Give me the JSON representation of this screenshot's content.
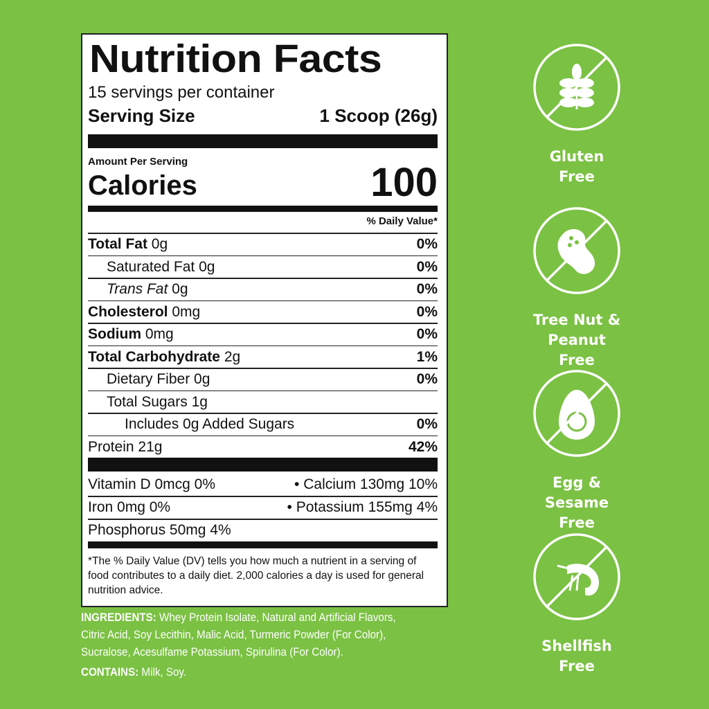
{
  "label": {
    "title": "Nutrition Facts",
    "servings": "15 servings per container",
    "serving_size_label": "Serving Size",
    "serving_size_value": "1 Scoop (26g)",
    "amount_per_serving": "Amount Per Serving",
    "calories_label": "Calories",
    "calories_value": "100",
    "dv_header": "% Daily Value*",
    "rows": [
      {
        "name": "Total Fat",
        "amount": "0g",
        "dv": "0%"
      },
      {
        "name": "Saturated Fat",
        "amount": "0g",
        "dv": "0%"
      },
      {
        "name": "Trans Fat",
        "amount": "0g",
        "dv": "0%"
      },
      {
        "name": "Cholesterol",
        "amount": "0mg",
        "dv": "0%"
      },
      {
        "name": "Sodium",
        "amount": "0mg",
        "dv": "0%"
      },
      {
        "name": "Total Carbohydrate",
        "amount": "2g",
        "dv": "1%"
      },
      {
        "name": "Dietary Fiber",
        "amount": "0g",
        "dv": "0%"
      },
      {
        "name": "Total Sugars",
        "amount": "1g",
        "dv": ""
      },
      {
        "name": "Includes 0g Added Sugars",
        "amount": "",
        "dv": "0%"
      },
      {
        "name": "Protein",
        "amount": "21g",
        "dv": "42%"
      }
    ],
    "micros": [
      {
        "left": "Vitamin D 0mcg 0%",
        "right": "• Calcium 130mg 10%"
      },
      {
        "left": "Iron 0mg 0%",
        "right": "• Potassium 155mg 4%"
      },
      {
        "left": "Phosphorus 50mg 4%",
        "right": ""
      }
    ],
    "footnote": "*The % Daily Value (DV) tells you how much a nutrient in a serving of food contributes to a daily diet. 2,000 calories a day is used for general nutrition advice."
  },
  "ingredients": {
    "label": "INGREDIENTS:",
    "text": "Whey Protein Isolate, Natural and Artificial Flavors, Citric Acid, Soy Lecithin, Malic Acid, Turmeric Powder (For Color), Sucralose, Acesulfame Potassium, Spirulina (For Color).",
    "contains_label": "CONTAINS:",
    "contains_text": "Milk, Soy."
  },
  "badges": [
    {
      "icon": "wheat-icon",
      "l1": "Gluten",
      "l2": "Free"
    },
    {
      "icon": "peanut-icon",
      "l1": "Tree Nut &",
      "l2": "Peanut Free"
    },
    {
      "icon": "egg-icon",
      "l1": "Egg &",
      "l2": "Sesame Free"
    },
    {
      "icon": "shrimp-icon",
      "l1": "Shellfish",
      "l2": "Free"
    }
  ],
  "colors": {
    "background": "#7bc143",
    "text_on_bg": "#ffffff"
  }
}
